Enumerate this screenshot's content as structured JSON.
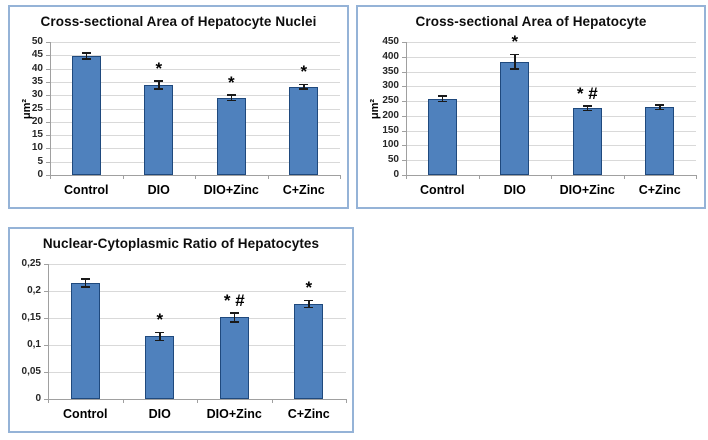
{
  "styles": {
    "panel_border": "#95B3D7",
    "bar_fill": "#4F81BD",
    "bar_border": "#1F497D",
    "gridline": "#D9D9D9",
    "axis_line": "#A0A0A0",
    "error_bar": "#1a1a1a",
    "marker_color": "#000000"
  },
  "chart_data": [
    {
      "type": "bar",
      "title": "Cross-sectional Area of Hepatocyte Nuclei",
      "ylabel": "μm²",
      "xlabel": "",
      "categories": [
        "Control",
        "DIO",
        "DIO+Zinc",
        "C+Zinc"
      ],
      "values": [
        44.8,
        33.8,
        29.0,
        33.2
      ],
      "errors": [
        1.2,
        1.6,
        1.1,
        0.9
      ],
      "annotations": [
        "",
        "*",
        "*",
        "*"
      ],
      "ylim": [
        0,
        50
      ],
      "ytick_step": 5,
      "ytick_labels": [
        "0",
        "5",
        "10",
        "15",
        "20",
        "25",
        "30",
        "35",
        "40",
        "45",
        "50"
      ],
      "grid": "horizontal",
      "legend": "none"
    },
    {
      "type": "bar",
      "title": "Cross-sectional Area of Hepatocyte",
      "ylabel": "μm²",
      "xlabel": "",
      "categories": [
        "Control",
        "DIO",
        "DIO+Zinc",
        "C+Zinc"
      ],
      "values": [
        258,
        383,
        226,
        229
      ],
      "errors": [
        10,
        25,
        8,
        8
      ],
      "annotations": [
        "",
        "*",
        "* #",
        ""
      ],
      "ylim": [
        0,
        450
      ],
      "ytick_step": 50,
      "ytick_labels": [
        "0",
        "50",
        "100",
        "150",
        "200",
        "250",
        "300",
        "350",
        "400",
        "450"
      ],
      "grid": "horizontal",
      "legend": "none"
    },
    {
      "type": "bar",
      "title": "Nuclear-Cytoplasmic Ratio of Hepatocytes",
      "ylabel": "",
      "xlabel": "",
      "categories": [
        "Control",
        "DIO",
        "DIO+Zinc",
        "C+Zinc"
      ],
      "values": [
        0.215,
        0.116,
        0.151,
        0.176
      ],
      "errors": [
        0.008,
        0.008,
        0.009,
        0.007
      ],
      "annotations": [
        "",
        "*",
        "* #",
        "*"
      ],
      "ylim": [
        0,
        0.25
      ],
      "ytick_step": 0.05,
      "ytick_labels": [
        "0",
        "0,05",
        "0,1",
        "0,15",
        "0,2",
        "0,25"
      ],
      "grid": "horizontal",
      "legend": "none"
    }
  ]
}
